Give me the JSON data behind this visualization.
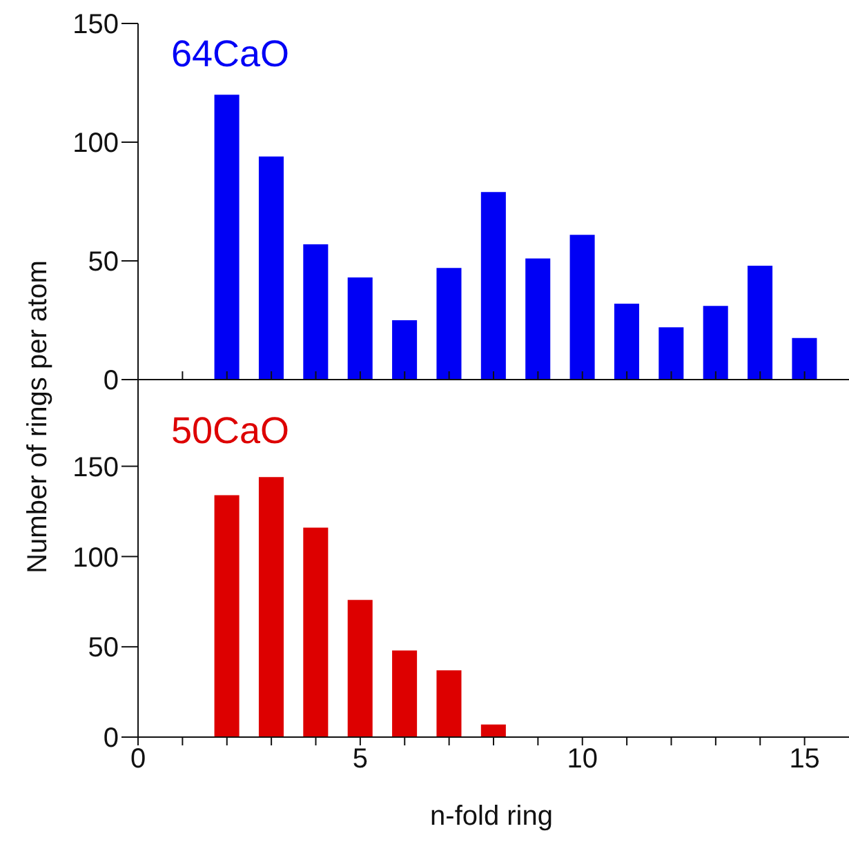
{
  "chart_data": [
    {
      "type": "bar",
      "ylabel": "Number of rings per atom",
      "x": [
        2,
        3,
        4,
        5,
        6,
        7,
        8,
        9,
        10,
        11,
        12,
        13,
        14,
        15
      ],
      "series": [
        {
          "name": "64CaO",
          "color": "#0000f5",
          "values": [
            120,
            94,
            57,
            43,
            25,
            47,
            79,
            51,
            61,
            32,
            22,
            31,
            48,
            17.5
          ]
        }
      ],
      "xlim": [
        0,
        16
      ],
      "xticks": [
        0,
        1,
        2,
        3,
        4,
        5,
        6,
        7,
        8,
        9,
        10,
        11,
        12,
        13,
        14,
        15
      ],
      "ylim": [
        0,
        150
      ],
      "yticks": [
        0,
        50,
        100,
        150
      ],
      "tick_labels": "y",
      "legend": false,
      "grid": false
    },
    {
      "type": "bar",
      "xlabel": "n-fold ring",
      "x": [
        2,
        3,
        4,
        5,
        6,
        7,
        8
      ],
      "series": [
        {
          "name": "50CaO",
          "color": "#dd0000",
          "values": [
            134,
            144,
            116,
            76,
            48,
            37,
            7
          ]
        }
      ],
      "xlim": [
        0,
        16
      ],
      "xticks": [
        0,
        {
          "value": 1,
          "label": null
        },
        {
          "value": 2,
          "label": null
        },
        {
          "value": 3,
          "label": null
        },
        {
          "value": 4,
          "label": null
        },
        5,
        {
          "value": 6,
          "label": null
        },
        {
          "value": 7,
          "label": null
        },
        {
          "value": 8,
          "label": null
        },
        {
          "value": 9,
          "label": null
        },
        10,
        {
          "value": 11,
          "label": null
        },
        {
          "value": 12,
          "label": null
        },
        {
          "value": 13,
          "label": null
        },
        {
          "value": 14,
          "label": null
        },
        15
      ],
      "ylim": [
        0,
        198
      ],
      "yticks": [
        0,
        50,
        100,
        150
      ],
      "legend": false,
      "grid": false
    }
  ]
}
